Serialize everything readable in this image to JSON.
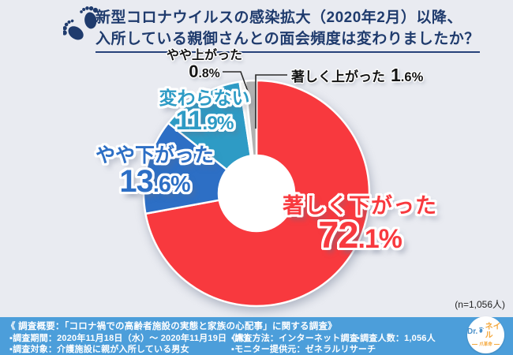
{
  "title": {
    "line1": "新型コロナウイルスの感染拡大（2020年2月）以降、",
    "line2": "入所している親御さんとの面会頻度は変わりましたか？"
  },
  "sample_note": "(n=1,056人)",
  "chart_data": {
    "type": "pie",
    "variant": "donut",
    "title": "入所している親御さんとの面会頻度は変わりましたか？",
    "start_angle_deg": 0,
    "direction": "clockwise",
    "categories": [
      "著しく下がった",
      "やや下がった",
      "変わらない",
      "やや上がった",
      "著しく上がった"
    ],
    "values": [
      72.1,
      13.6,
      11.9,
      0.8,
      1.6
    ],
    "unit": "%",
    "colors": [
      "#F8393E",
      "#2D6FC5",
      "#2E9BC5",
      "#EFEFEF",
      "#B1B1B1"
    ],
    "n": "1,056",
    "legend_position": "callout-labels"
  },
  "callouts": {
    "sharply_down": {
      "name": "著しく下がった",
      "value": "72.1%"
    },
    "slightly_down": {
      "name": "やや下がった",
      "value": "13.6%"
    },
    "unchanged": {
      "name": "変わらない",
      "value": "11.9%"
    },
    "slightly_up": {
      "name": "やや上がった",
      "value": "0.8%"
    },
    "sharply_up": {
      "name": "著しく上がった",
      "value": "1.6%"
    }
  },
  "footer": {
    "headline": "《 調査概要：「コロナ禍での高齢者施設の実態と家族の心配事」に関する調査》",
    "items": [
      "▪調査期間：2020年11月18日（水）～ 2020年11月19日（木）",
      "▪調査方法：インターネット調査",
      "▪調査人数：1,056人",
      "▪調査対象：介護施設に親が入所している男女",
      "▪モニター提供元：ゼネラルリサーチ"
    ]
  },
  "logo": {
    "prefix": "Dr.",
    "name": "ネイル",
    "subtitle": "爪革命"
  },
  "colors": {
    "background": "#E9EBF1",
    "title_navy": "#1F3B6D",
    "footer_bg": "#4C9EDA",
    "red": "#F8393E",
    "blue": "#2D6FC5",
    "teal": "#2E9BC5",
    "gray": "#B1B1B1"
  }
}
